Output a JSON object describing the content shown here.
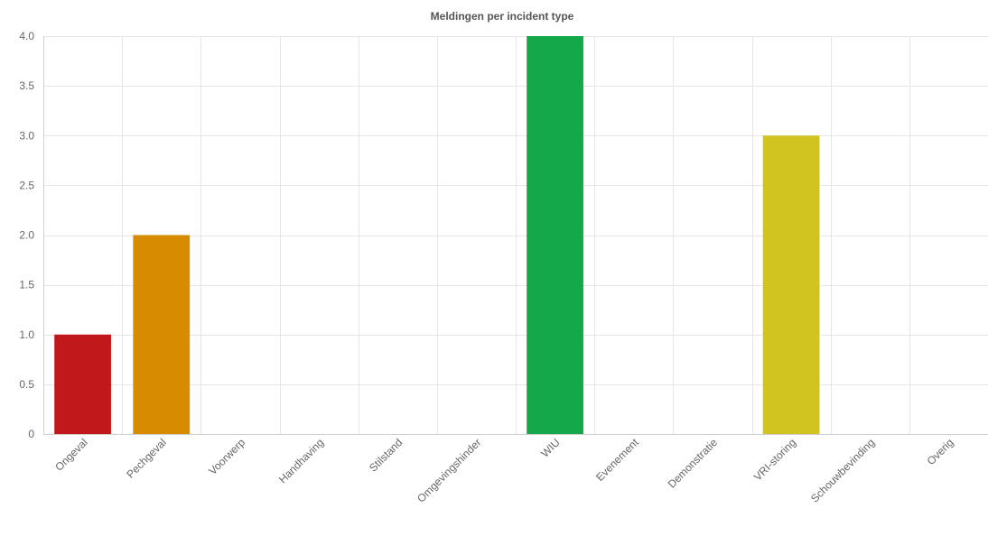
{
  "chart_data": {
    "type": "bar",
    "title": "Meldingen per incident type",
    "xlabel": "",
    "ylabel": "",
    "categories": [
      "Ongeval",
      "Pechgeval",
      "Voorwerp",
      "Handhaving",
      "Stilstand",
      "Omgevingshinder",
      "WIU",
      "Evenement",
      "Demonstratie",
      "VRI-storing",
      "Schouwbevinding",
      "Overig"
    ],
    "values": [
      1,
      2,
      0,
      0,
      0,
      0,
      4,
      0,
      0,
      3,
      0,
      0
    ],
    "colors": [
      "#c0181b",
      "#d68b00",
      "#cccccc",
      "#cccccc",
      "#cccccc",
      "#cccccc",
      "#14a84a",
      "#cccccc",
      "#cccccc",
      "#d2c420",
      "#cccccc",
      "#cccccc"
    ],
    "ylim": [
      0,
      4
    ],
    "yticks": [
      "0",
      "0.5",
      "1.0",
      "1.5",
      "2.0",
      "2.5",
      "3.0",
      "3.5",
      "4.0"
    ],
    "grid": true,
    "legend": "none"
  }
}
